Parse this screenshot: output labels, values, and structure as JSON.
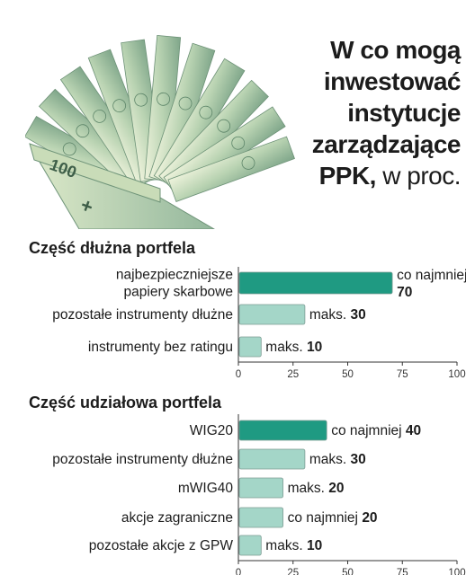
{
  "header": {
    "title_bold": "W co mogą inwestować instytucje zarządzające PPK,",
    "title_lines": [
      "W co mogą",
      "inwestować",
      "instytucje",
      "zarządzające",
      "PPK,"
    ],
    "title_suffix": "w proc."
  },
  "colors": {
    "primary_bar": "#1f9a82",
    "secondary_bar": "#a4d6c8",
    "axis": "#333333"
  },
  "chart_data": [
    {
      "type": "bar",
      "orientation": "horizontal",
      "title": "Część dłużna portfela",
      "xlim": [
        0,
        100
      ],
      "x_ticks": [
        0,
        25,
        50,
        75,
        100
      ],
      "bars": [
        {
          "label_lines": [
            "najbezpieczniejsze",
            "papiery skarbowe"
          ],
          "value": 70,
          "prefix": "co najmniej",
          "highlight": true
        },
        {
          "label_lines": [
            "pozostałe instrumenty dłużne"
          ],
          "value": 30,
          "prefix": "maks.",
          "highlight": false
        },
        {
          "label_lines": [
            "instrumenty bez ratingu"
          ],
          "value": 10,
          "prefix": "maks.",
          "highlight": false
        }
      ]
    },
    {
      "type": "bar",
      "orientation": "horizontal",
      "title": "Część udziałowa portfela",
      "xlim": [
        0,
        100
      ],
      "x_ticks": [
        0,
        25,
        50,
        75,
        100
      ],
      "bars": [
        {
          "label_lines": [
            "WIG20"
          ],
          "value": 40,
          "prefix": "co najmniej",
          "highlight": true
        },
        {
          "label_lines": [
            "pozostałe instrumenty dłużne"
          ],
          "value": 30,
          "prefix": "maks.",
          "highlight": false
        },
        {
          "label_lines": [
            "mWIG40"
          ],
          "value": 20,
          "prefix": "maks.",
          "highlight": false
        },
        {
          "label_lines": [
            "akcje zagraniczne"
          ],
          "value": 20,
          "prefix": "co najmniej",
          "highlight": false
        },
        {
          "label_lines": [
            "pozostałe akcje z GPW"
          ],
          "value": 10,
          "prefix": "maks.",
          "highlight": false
        }
      ]
    }
  ]
}
